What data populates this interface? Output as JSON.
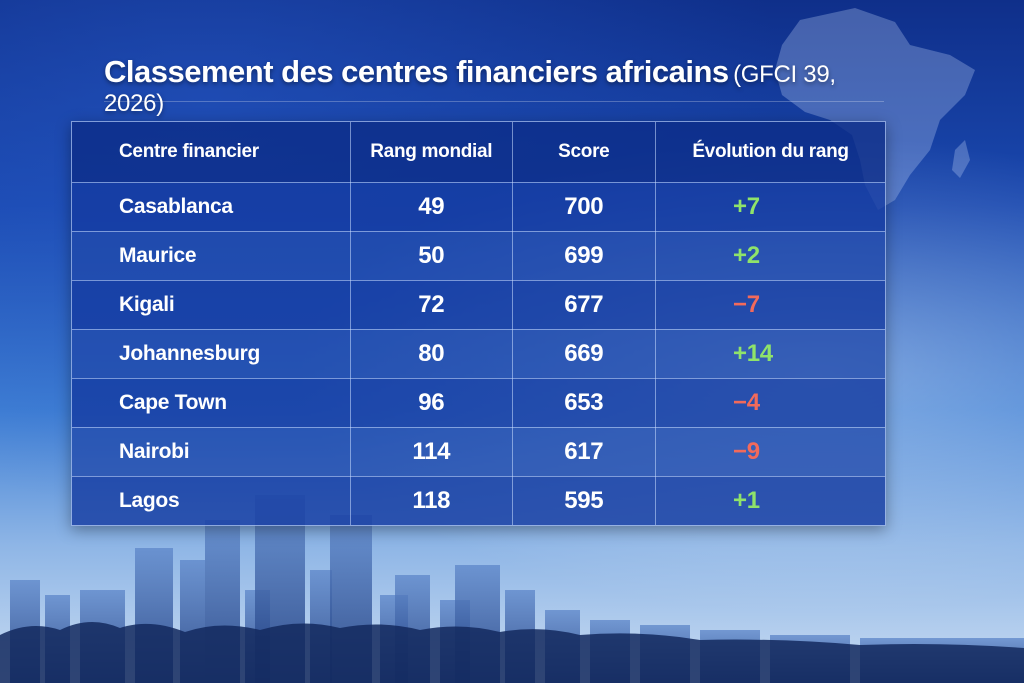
{
  "title": {
    "main": "Classement des centres financiers africains",
    "sub": "(GFCI 39, 2026)"
  },
  "table": {
    "headers": [
      "Centre financier",
      "Rang mondial",
      "Score",
      "Évolution du rang"
    ],
    "rows": [
      {
        "centre": "Casablanca",
        "rang": "49",
        "score": "700",
        "evolution": "+7"
      },
      {
        "centre": "Maurice",
        "rang": "50",
        "score": "699",
        "evolution": "+2"
      },
      {
        "centre": "Kigali",
        "rang": "72",
        "score": "677",
        "evolution": "−7"
      },
      {
        "centre": "Johannesburg",
        "rang": "80",
        "score": "669",
        "evolution": "+14"
      },
      {
        "centre": "Cape Town",
        "rang": "96",
        "score": "653",
        "evolution": "−4"
      },
      {
        "centre": "Nairobi",
        "rang": "114",
        "score": "617",
        "evolution": "−9"
      },
      {
        "centre": "Lagos",
        "rang": "118",
        "score": "595",
        "evolution": "+1"
      }
    ]
  },
  "colors": {
    "positive": "#8fe36a",
    "negative": "#f26a5b",
    "background": "#1a49b0"
  },
  "decor": {
    "background_image": "africa-map-icon",
    "skyline_image": "city-skyline"
  }
}
